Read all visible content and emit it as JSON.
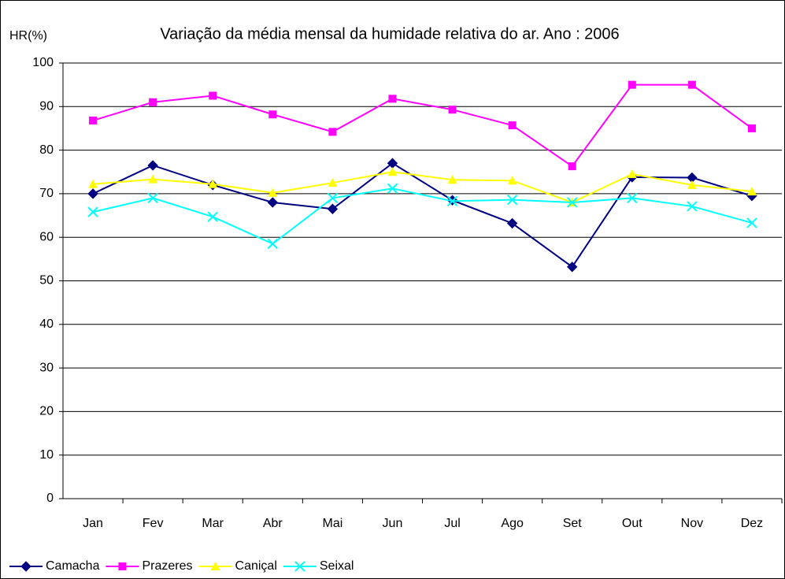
{
  "chart_data": {
    "type": "line",
    "title": "Variação da média mensal da humidade relativa do ar. Ano : 2006",
    "y_label": "HR(%)",
    "categories": [
      "Jan",
      "Fev",
      "Mar",
      "Abr",
      "Mai",
      "Jun",
      "Jul",
      "Ago",
      "Set",
      "Out",
      "Nov",
      "Dez"
    ],
    "series": [
      {
        "name": "Camacha",
        "color": "#000080",
        "marker": "diamond",
        "values": [
          70,
          76.5,
          72,
          68,
          66.5,
          77,
          68.5,
          63.2,
          53.2,
          73.8,
          73.7,
          69.5
        ]
      },
      {
        "name": "Prazeres",
        "color": "#ff00ff",
        "marker": "square",
        "values": [
          86.8,
          91,
          92.5,
          88.2,
          84.2,
          91.8,
          89.3,
          85.7,
          76.3,
          95,
          95,
          85
        ]
      },
      {
        "name": "Caniçal",
        "color": "#ffff00",
        "marker": "triangle",
        "values": [
          72.2,
          73.3,
          72.2,
          70.2,
          72.5,
          75,
          73.2,
          73,
          68,
          74.5,
          72,
          70.5
        ]
      },
      {
        "name": "Seixal",
        "color": "#00ffff",
        "marker": "x",
        "values": [
          65.8,
          69,
          64.7,
          58.5,
          69,
          71.2,
          68.3,
          68.6,
          68,
          69,
          67.1,
          63.3
        ]
      }
    ],
    "ylim": [
      0,
      100
    ],
    "yticks": [
      0,
      10,
      20,
      30,
      40,
      50,
      60,
      70,
      80,
      90,
      100
    ],
    "grid": true,
    "legend": "bottom"
  }
}
